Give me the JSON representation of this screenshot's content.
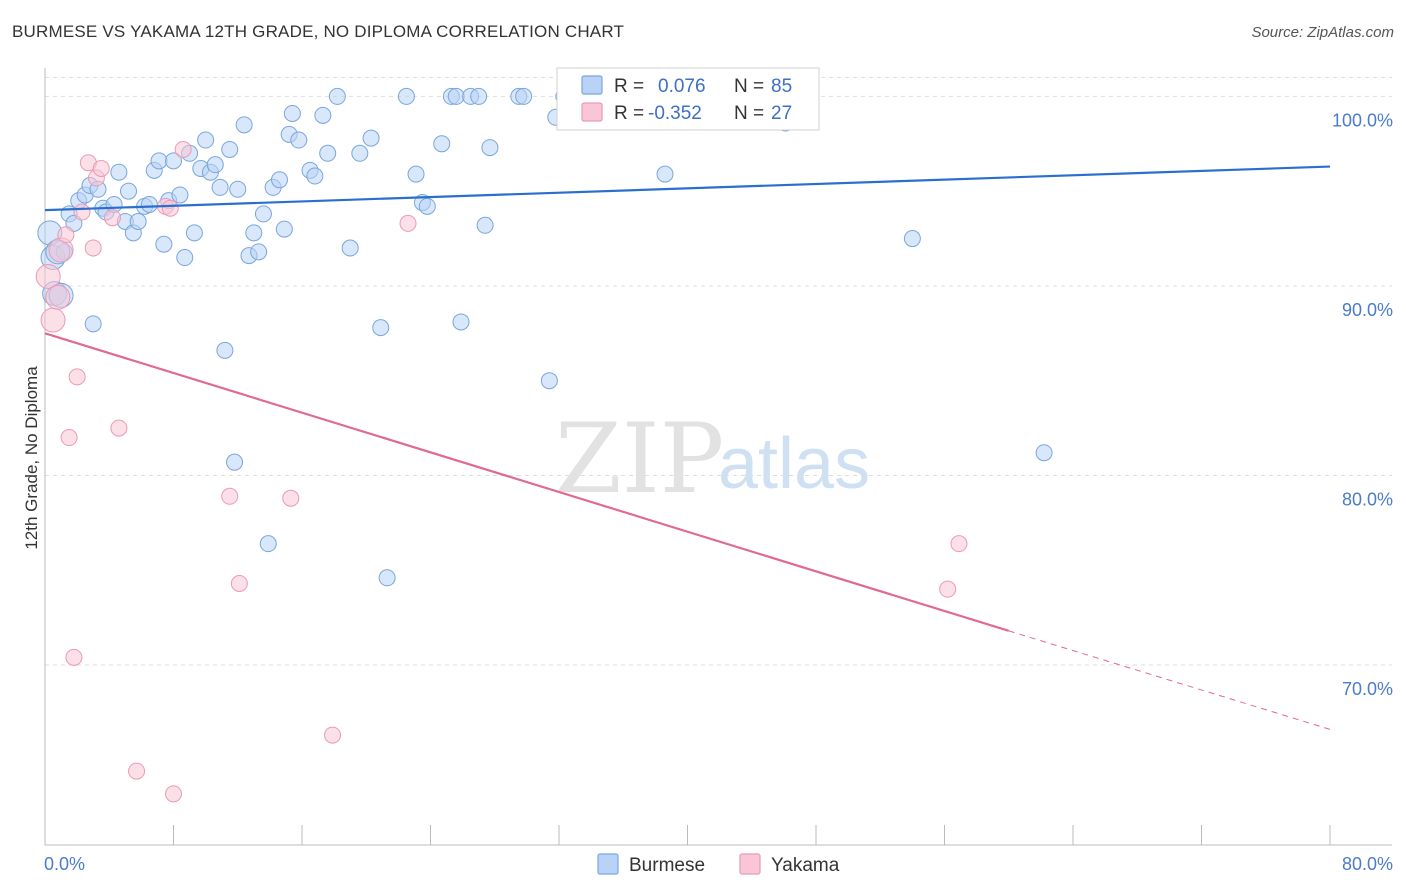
{
  "title": "BURMESE VS YAKAMA 12TH GRADE, NO DIPLOMA CORRELATION CHART",
  "source": "Source: ZipAtlas.com",
  "watermark": {
    "zip": "ZIP",
    "atlas": "atlas"
  },
  "colors": {
    "blue_fill": "#b8d3f5",
    "blue_stroke": "#7aa6dc",
    "blue_line": "#2b6fce",
    "pink_fill": "#f8c6d6",
    "pink_stroke": "#eb9ab5",
    "pink_line": "#e06a93",
    "grid": "#dddddd",
    "tick_text": "#4a7cc9"
  },
  "legend_box": {
    "rows": [
      {
        "r_label": "R =",
        "r_value": "0.076",
        "n_label": "N =",
        "n_value": "85",
        "color": "blue"
      },
      {
        "r_label": "R =",
        "r_value": "-0.352",
        "n_label": "N =",
        "n_value": "27",
        "color": "pink"
      }
    ]
  },
  "chart_data": {
    "type": "scatter",
    "title": "BURMESE VS YAKAMA 12TH GRADE, NO DIPLOMA CORRELATION CHART",
    "xlabel": "",
    "ylabel": "12th Grade, No Diploma",
    "xlim": [
      0,
      80
    ],
    "ylim": [
      60.5,
      101.5
    ],
    "x_tick_labels": [
      "0.0%",
      "80.0%"
    ],
    "y_ticks": [
      70,
      80,
      90,
      100
    ],
    "y_tick_labels": [
      "70.0%",
      "80.0%",
      "90.0%",
      "100.0%"
    ],
    "grid": true,
    "legend_position": "bottom-center",
    "series": [
      {
        "name": "Burmese",
        "color": "blue",
        "R": 0.076,
        "N": 85,
        "trend": {
          "x": [
            0,
            80
          ],
          "y": [
            94.0,
            96.3
          ]
        },
        "points": [
          [
            0.3,
            92.8
          ],
          [
            0.5,
            91.5
          ],
          [
            0.6,
            89.6
          ],
          [
            1.2,
            91.8
          ],
          [
            1.5,
            93.8
          ],
          [
            1.8,
            93.3
          ],
          [
            2.1,
            94.5
          ],
          [
            2.5,
            94.8
          ],
          [
            2.8,
            95.3
          ],
          [
            3.0,
            88.0
          ],
          [
            3.3,
            95.1
          ],
          [
            3.6,
            94.1
          ],
          [
            3.8,
            93.9
          ],
          [
            4.3,
            94.3
          ],
          [
            4.6,
            96.0
          ],
          [
            5.0,
            93.4
          ],
          [
            5.2,
            95.0
          ],
          [
            5.5,
            92.8
          ],
          [
            5.8,
            93.4
          ],
          [
            6.2,
            94.2
          ],
          [
            6.5,
            94.3
          ],
          [
            6.8,
            96.1
          ],
          [
            7.1,
            96.6
          ],
          [
            7.4,
            92.2
          ],
          [
            7.7,
            94.5
          ],
          [
            8.0,
            96.6
          ],
          [
            8.4,
            94.8
          ],
          [
            8.7,
            91.5
          ],
          [
            9.0,
            97.0
          ],
          [
            9.3,
            92.8
          ],
          [
            9.7,
            96.2
          ],
          [
            10.0,
            97.7
          ],
          [
            10.3,
            96.0
          ],
          [
            10.6,
            96.4
          ],
          [
            10.9,
            95.2
          ],
          [
            11.2,
            86.6
          ],
          [
            11.5,
            97.2
          ],
          [
            11.8,
            80.7
          ],
          [
            12.0,
            95.1
          ],
          [
            12.4,
            98.5
          ],
          [
            12.7,
            91.6
          ],
          [
            13.0,
            92.8
          ],
          [
            13.3,
            91.8
          ],
          [
            13.6,
            93.8
          ],
          [
            13.9,
            76.4
          ],
          [
            14.2,
            95.2
          ],
          [
            14.6,
            95.6
          ],
          [
            14.9,
            93.0
          ],
          [
            15.2,
            98.0
          ],
          [
            15.4,
            99.1
          ],
          [
            15.8,
            97.7
          ],
          [
            16.5,
            96.1
          ],
          [
            16.8,
            95.8
          ],
          [
            17.3,
            99.0
          ],
          [
            17.6,
            97.0
          ],
          [
            18.2,
            100.0
          ],
          [
            19.0,
            92.0
          ],
          [
            19.6,
            97.0
          ],
          [
            20.3,
            97.8
          ],
          [
            20.9,
            87.8
          ],
          [
            21.3,
            74.6
          ],
          [
            22.5,
            100.0
          ],
          [
            23.1,
            95.9
          ],
          [
            23.5,
            94.4
          ],
          [
            23.8,
            94.2
          ],
          [
            24.7,
            97.5
          ],
          [
            25.3,
            100.0
          ],
          [
            25.6,
            100.0
          ],
          [
            25.9,
            88.1
          ],
          [
            26.5,
            100.0
          ],
          [
            27.0,
            100.0
          ],
          [
            27.4,
            93.2
          ],
          [
            27.7,
            97.3
          ],
          [
            29.5,
            100.0
          ],
          [
            29.8,
            100.0
          ],
          [
            31.4,
            85.0
          ],
          [
            31.8,
            98.9
          ],
          [
            32.3,
            100.0
          ],
          [
            36.3,
            100.0
          ],
          [
            38.6,
            95.9
          ],
          [
            46.1,
            98.6
          ],
          [
            54.0,
            92.5
          ],
          [
            62.2,
            81.2
          ],
          [
            0.8,
            91.8
          ],
          [
            1.0,
            89.5
          ]
        ]
      },
      {
        "name": "Yakama",
        "color": "pink",
        "R": -0.352,
        "N": 27,
        "trend": {
          "x": [
            0,
            60
          ],
          "y": [
            87.5,
            71.8
          ]
        },
        "trend_dashed": {
          "x": [
            60,
            80
          ],
          "y": [
            71.8,
            66.6
          ]
        },
        "points": [
          [
            0.2,
            90.5
          ],
          [
            0.5,
            88.2
          ],
          [
            0.8,
            89.4
          ],
          [
            1.0,
            91.9
          ],
          [
            1.3,
            92.7
          ],
          [
            1.5,
            82.0
          ],
          [
            1.8,
            70.4
          ],
          [
            2.0,
            85.2
          ],
          [
            2.3,
            93.9
          ],
          [
            2.7,
            96.5
          ],
          [
            3.0,
            92.0
          ],
          [
            3.2,
            95.7
          ],
          [
            3.5,
            96.2
          ],
          [
            4.2,
            93.6
          ],
          [
            4.6,
            82.5
          ],
          [
            5.7,
            64.4
          ],
          [
            7.5,
            94.2
          ],
          [
            7.8,
            94.1
          ],
          [
            8.0,
            63.2
          ],
          [
            8.6,
            97.2
          ],
          [
            11.5,
            78.9
          ],
          [
            12.1,
            74.3
          ],
          [
            15.3,
            78.8
          ],
          [
            17.9,
            66.3
          ],
          [
            22.6,
            93.3
          ],
          [
            56.2,
            74.0
          ],
          [
            56.9,
            76.4
          ]
        ]
      }
    ]
  }
}
